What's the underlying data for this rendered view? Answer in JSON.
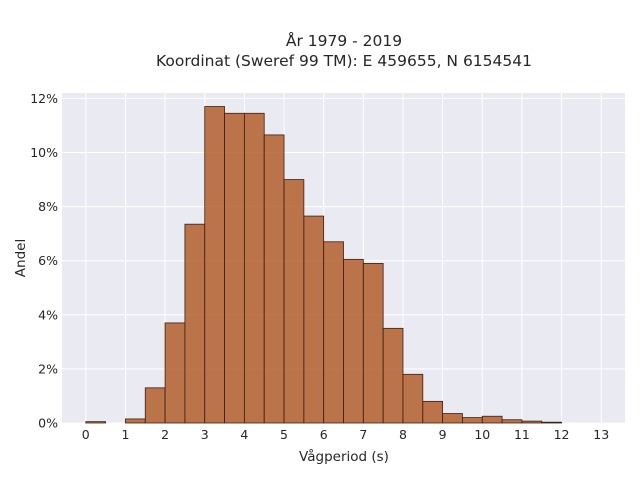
{
  "chart_data": {
    "type": "bar",
    "title_lines": [
      "År 1979 - 2019",
      "Koordinat (Sweref 99 TM): E 459655, N 6154541"
    ],
    "xlabel": "Vågperiod (s)",
    "ylabel": "Andel",
    "bin_width": 0.5,
    "bin_starts": [
      0,
      0.5,
      1,
      1.5,
      2,
      2.5,
      3,
      3.5,
      4,
      4.5,
      5,
      5.5,
      6,
      6.5,
      7,
      7.5,
      8,
      8.5,
      9,
      9.5,
      10,
      10.5,
      11,
      11.5,
      12
    ],
    "values": [
      0.05,
      0.0,
      0.15,
      1.3,
      3.7,
      7.35,
      11.7,
      11.45,
      11.45,
      10.65,
      9.0,
      7.65,
      6.7,
      6.05,
      5.9,
      3.5,
      1.8,
      0.8,
      0.35,
      0.2,
      0.25,
      0.12,
      0.07,
      0.03,
      0.0
    ],
    "xlim": [
      -0.6,
      13.6
    ],
    "ylim": [
      0,
      12.2
    ],
    "x_ticks": [
      "0",
      "1",
      "2",
      "3",
      "4",
      "5",
      "6",
      "7",
      "8",
      "9",
      "10",
      "11",
      "12",
      "13"
    ],
    "y_ticks": [
      "0%",
      "2%",
      "4%",
      "6%",
      "8%",
      "10%",
      "12%"
    ],
    "grid": true,
    "colors": {
      "bar_fill": "#b35e2c",
      "bar_edge": "#3d1f10",
      "plot_bg": "#eaeaf2",
      "grid": "#ffffff"
    }
  }
}
